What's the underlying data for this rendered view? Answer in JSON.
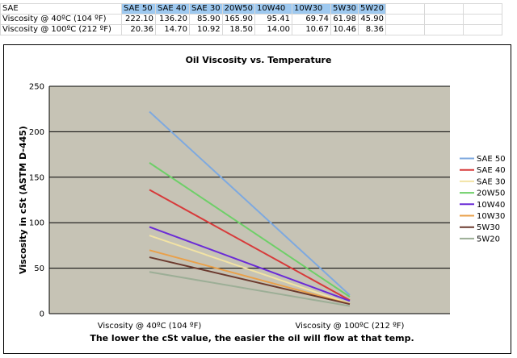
{
  "table": {
    "headers": [
      "SAE",
      "SAE 50",
      "SAE 40",
      "SAE 30",
      "20W50",
      "10W40",
      "10W30",
      "5W30",
      "5W20"
    ],
    "rows": [
      {
        "label": "Viscosity @ 40ºC (104 ºF)",
        "values": [
          "222.10",
          "136.20",
          "85.90",
          "165.90",
          "95.41",
          "69.74",
          "61.98",
          "45.90"
        ]
      },
      {
        "label": "Viscosity @ 100ºC (212 ºF)",
        "values": [
          "20.36",
          "14.70",
          "10.92",
          "18.50",
          "14.00",
          "10.67",
          "10.46",
          "8.36"
        ]
      }
    ]
  },
  "chart_data": {
    "type": "line",
    "title": "Oil Viscosity vs. Temperature",
    "ylabel": "Viscosity in cSt (ASTM D-445)",
    "xlabel": "The lower the cSt value, the easier the oil will flow at that temp.",
    "categories": [
      "Viscosity @ 40ºC (104 ºF)",
      "Viscosity @ 100ºC (212 ºF)"
    ],
    "ylim": [
      0,
      250
    ],
    "yticks": [
      "0",
      "50",
      "100",
      "150",
      "200",
      "250"
    ],
    "grid": true,
    "legend_position": "right",
    "plot_background": "#c6c3b5",
    "series": [
      {
        "name": "SAE 50",
        "values": [
          222.1,
          20.36
        ],
        "color": "#7ea9df"
      },
      {
        "name": "SAE 40",
        "values": [
          136.2,
          14.7
        ],
        "color": "#d73a3a"
      },
      {
        "name": "SAE 30",
        "values": [
          85.9,
          10.92
        ],
        "color": "#f2e3a4"
      },
      {
        "name": "20W50",
        "values": [
          165.9,
          18.5
        ],
        "color": "#6ecf68"
      },
      {
        "name": "10W40",
        "values": [
          95.41,
          14.0
        ],
        "color": "#6a2bd6"
      },
      {
        "name": "10W30",
        "values": [
          69.74,
          10.67
        ],
        "color": "#e9a04a"
      },
      {
        "name": "5W30",
        "values": [
          61.98,
          10.46
        ],
        "color": "#6b3a2e"
      },
      {
        "name": "5W20",
        "values": [
          45.9,
          8.36
        ],
        "color": "#9cae96"
      }
    ]
  }
}
